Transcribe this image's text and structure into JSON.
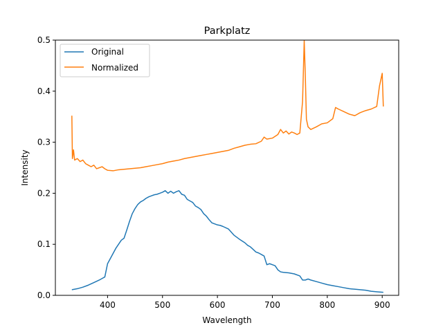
{
  "chart_data": {
    "type": "line",
    "title": "Parkplatz",
    "xlabel": "Wavelength",
    "ylabel": "Intensity",
    "xlim": [
      305,
      930
    ],
    "ylim": [
      0,
      0.5
    ],
    "xticks": [
      400,
      500,
      600,
      700,
      800,
      900
    ],
    "yticks": [
      0.0,
      0.1,
      0.2,
      0.3,
      0.4,
      0.5
    ],
    "xtick_labels": [
      "400",
      "500",
      "600",
      "700",
      "800",
      "900"
    ],
    "ytick_labels": [
      "0.0",
      "0.1",
      "0.2",
      "0.3",
      "0.4",
      "0.5"
    ],
    "legend_position": "upper-left",
    "grid": false,
    "series": [
      {
        "name": "Original",
        "color": "#1f77b4",
        "x": [
          335,
          345,
          355,
          365,
          375,
          385,
          390,
          395,
          400,
          405,
          410,
          415,
          420,
          425,
          430,
          435,
          440,
          445,
          450,
          455,
          460,
          465,
          470,
          475,
          480,
          485,
          490,
          495,
          500,
          505,
          510,
          515,
          520,
          525,
          530,
          535,
          540,
          545,
          550,
          555,
          560,
          565,
          570,
          575,
          580,
          585,
          590,
          595,
          600,
          605,
          610,
          620,
          630,
          640,
          650,
          655,
          660,
          665,
          670,
          675,
          680,
          685,
          690,
          695,
          700,
          705,
          710,
          715,
          720,
          730,
          740,
          750,
          755,
          760,
          765,
          770,
          780,
          790,
          800,
          810,
          820,
          830,
          840,
          850,
          860,
          870,
          880,
          890,
          902
        ],
        "y": [
          0.011,
          0.013,
          0.016,
          0.02,
          0.025,
          0.03,
          0.033,
          0.036,
          0.062,
          0.072,
          0.082,
          0.092,
          0.1,
          0.108,
          0.112,
          0.128,
          0.145,
          0.16,
          0.17,
          0.178,
          0.183,
          0.186,
          0.19,
          0.193,
          0.195,
          0.197,
          0.198,
          0.2,
          0.202,
          0.205,
          0.2,
          0.204,
          0.2,
          0.203,
          0.205,
          0.198,
          0.196,
          0.188,
          0.185,
          0.182,
          0.175,
          0.172,
          0.168,
          0.16,
          0.155,
          0.148,
          0.142,
          0.14,
          0.138,
          0.137,
          0.135,
          0.13,
          0.118,
          0.11,
          0.103,
          0.098,
          0.095,
          0.09,
          0.085,
          0.083,
          0.08,
          0.077,
          0.06,
          0.062,
          0.06,
          0.058,
          0.05,
          0.046,
          0.045,
          0.044,
          0.042,
          0.038,
          0.03,
          0.03,
          0.032,
          0.03,
          0.027,
          0.024,
          0.021,
          0.019,
          0.017,
          0.015,
          0.013,
          0.012,
          0.011,
          0.01,
          0.008,
          0.007,
          0.006
        ]
      },
      {
        "name": "Normalized",
        "color": "#ff7f0e",
        "x": [
          335,
          336,
          338,
          340,
          345,
          350,
          355,
          360,
          365,
          370,
          375,
          380,
          385,
          390,
          395,
          400,
          410,
          420,
          430,
          440,
          450,
          460,
          470,
          480,
          490,
          500,
          510,
          520,
          530,
          540,
          550,
          560,
          570,
          580,
          590,
          600,
          610,
          620,
          630,
          640,
          650,
          660,
          670,
          680,
          685,
          690,
          700,
          710,
          715,
          720,
          725,
          730,
          735,
          740,
          745,
          750,
          755,
          758,
          760,
          762,
          765,
          770,
          780,
          790,
          800,
          810,
          815,
          820,
          830,
          840,
          850,
          860,
          870,
          880,
          890,
          895,
          900,
          902
        ],
        "y": [
          0.352,
          0.268,
          0.285,
          0.265,
          0.268,
          0.262,
          0.265,
          0.258,
          0.255,
          0.252,
          0.255,
          0.248,
          0.25,
          0.252,
          0.248,
          0.245,
          0.244,
          0.246,
          0.247,
          0.248,
          0.249,
          0.25,
          0.252,
          0.254,
          0.256,
          0.258,
          0.261,
          0.263,
          0.265,
          0.268,
          0.27,
          0.272,
          0.274,
          0.276,
          0.278,
          0.28,
          0.282,
          0.284,
          0.288,
          0.291,
          0.294,
          0.296,
          0.297,
          0.302,
          0.31,
          0.306,
          0.308,
          0.315,
          0.325,
          0.318,
          0.322,
          0.316,
          0.32,
          0.318,
          0.315,
          0.318,
          0.38,
          0.499,
          0.43,
          0.345,
          0.33,
          0.325,
          0.33,
          0.336,
          0.338,
          0.346,
          0.368,
          0.365,
          0.36,
          0.355,
          0.352,
          0.358,
          0.362,
          0.365,
          0.37,
          0.41,
          0.435,
          0.37
        ]
      }
    ]
  }
}
